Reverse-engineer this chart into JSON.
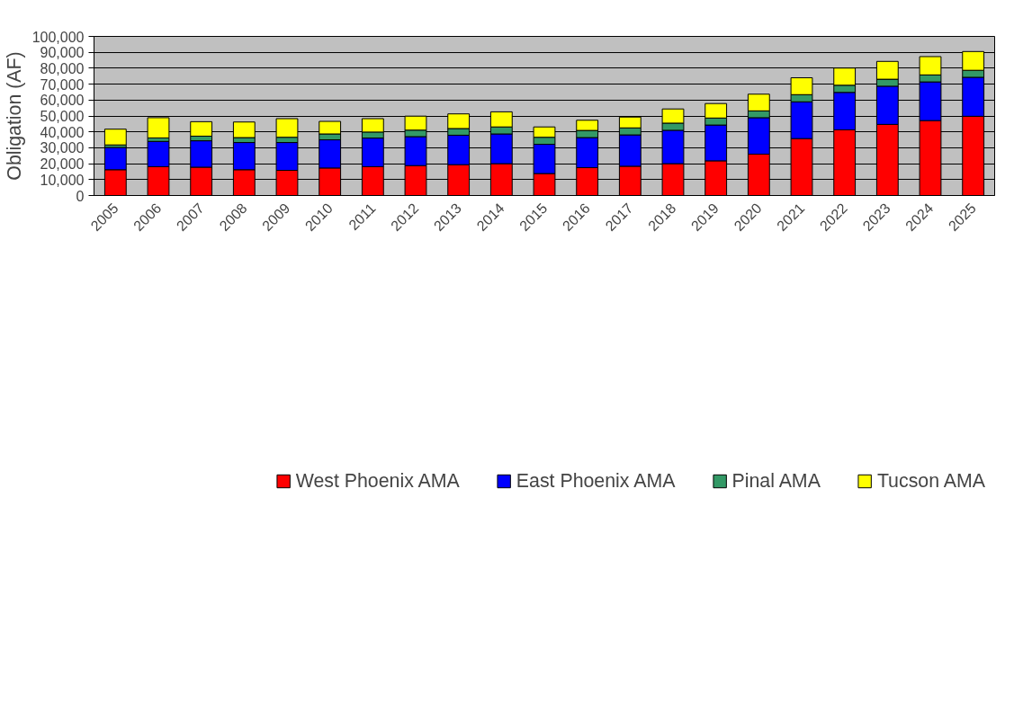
{
  "chart_data": {
    "type": "bar",
    "stacked": true,
    "ylabel": "Obligation (AF)",
    "categories": [
      "2005",
      "2006",
      "2007",
      "2008",
      "2009",
      "2010",
      "2011",
      "2012",
      "2013",
      "2014",
      "2015",
      "2016",
      "2017",
      "2018",
      "2019",
      "2020",
      "2021",
      "2022",
      "2023",
      "2024",
      "2025"
    ],
    "series": [
      {
        "name": "West Phoenix AMA",
        "color": "#ff0000",
        "values": [
          16200,
          18100,
          17800,
          16200,
          15800,
          17300,
          18100,
          18800,
          19400,
          20000,
          13800,
          17500,
          18400,
          20000,
          21800,
          26000,
          35800,
          41300,
          44700,
          47100,
          49800
        ]
      },
      {
        "name": "East Phoenix AMA",
        "color": "#0000ff",
        "values": [
          14000,
          15900,
          16600,
          17100,
          17500,
          17700,
          18000,
          18200,
          18500,
          18700,
          18400,
          18900,
          19700,
          21000,
          22500,
          22900,
          23100,
          23500,
          24000,
          24300,
          24500
        ]
      },
      {
        "name": "Pinal AMA",
        "color": "#339966",
        "values": [
          1600,
          2200,
          2900,
          3100,
          3300,
          3700,
          3800,
          4100,
          4200,
          4400,
          4400,
          4500,
          4400,
          4500,
          4400,
          4300,
          4500,
          4500,
          4400,
          4400,
          4400
        ]
      },
      {
        "name": "Tucson AMA",
        "color": "#ffff00",
        "values": [
          9900,
          12700,
          9100,
          9800,
          11700,
          7900,
          8400,
          8800,
          9200,
          9500,
          6500,
          6400,
          6800,
          8900,
          9100,
          10500,
          10600,
          10800,
          11200,
          11500,
          11800
        ]
      }
    ],
    "ylim": [
      0,
      100000
    ],
    "yticks": [
      {
        "value": 0,
        "label": "0"
      },
      {
        "value": 10000,
        "label": "10,000"
      },
      {
        "value": 20000,
        "label": "20,000"
      },
      {
        "value": 30000,
        "label": "30,000"
      },
      {
        "value": 40000,
        "label": "40,000"
      },
      {
        "value": 50000,
        "label": "50,000"
      },
      {
        "value": 60000,
        "label": "60,000"
      },
      {
        "value": 70000,
        "label": "70,000"
      },
      {
        "value": 80000,
        "label": "80,000"
      },
      {
        "value": 90000,
        "label": "90,000"
      },
      {
        "value": 100000,
        "label": "100,000"
      }
    ],
    "grid": "y",
    "legend": "bottom"
  }
}
